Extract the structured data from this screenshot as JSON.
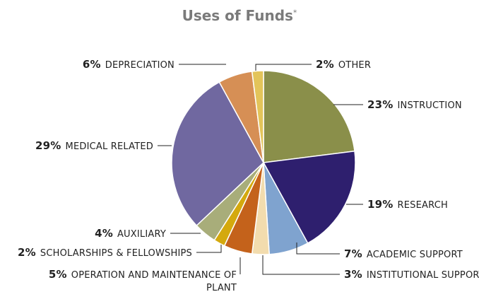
{
  "chart_data": {
    "type": "pie",
    "title": "Uses of Funds",
    "title_marker": "*",
    "categories": [
      "INSTRUCTION",
      "RESEARCH",
      "ACADEMIC SUPPORT",
      "INSTITUTIONAL SUPPORT",
      "OPERATION AND MAINTENANCE OF PLANT",
      "SCHOLARSHIPS & FELLOWSHIPS",
      "AUXILIARY",
      "MEDICAL RELATED",
      "DEPRECIATION",
      "OTHER"
    ],
    "values": [
      23,
      19,
      7,
      3,
      5,
      2,
      4,
      29,
      6,
      2
    ],
    "value_labels": [
      "23%",
      "19%",
      "7%",
      "3%",
      "5%",
      "2%",
      "4%",
      "29%",
      "6%",
      "2%"
    ],
    "colors": [
      "#8a8f4a",
      "#2e1f6e",
      "#7fa3cf",
      "#f2dcae",
      "#c4621b",
      "#d4a90e",
      "#a8ad7a",
      "#7068a0",
      "#d68f55",
      "#e3c45a"
    ]
  }
}
